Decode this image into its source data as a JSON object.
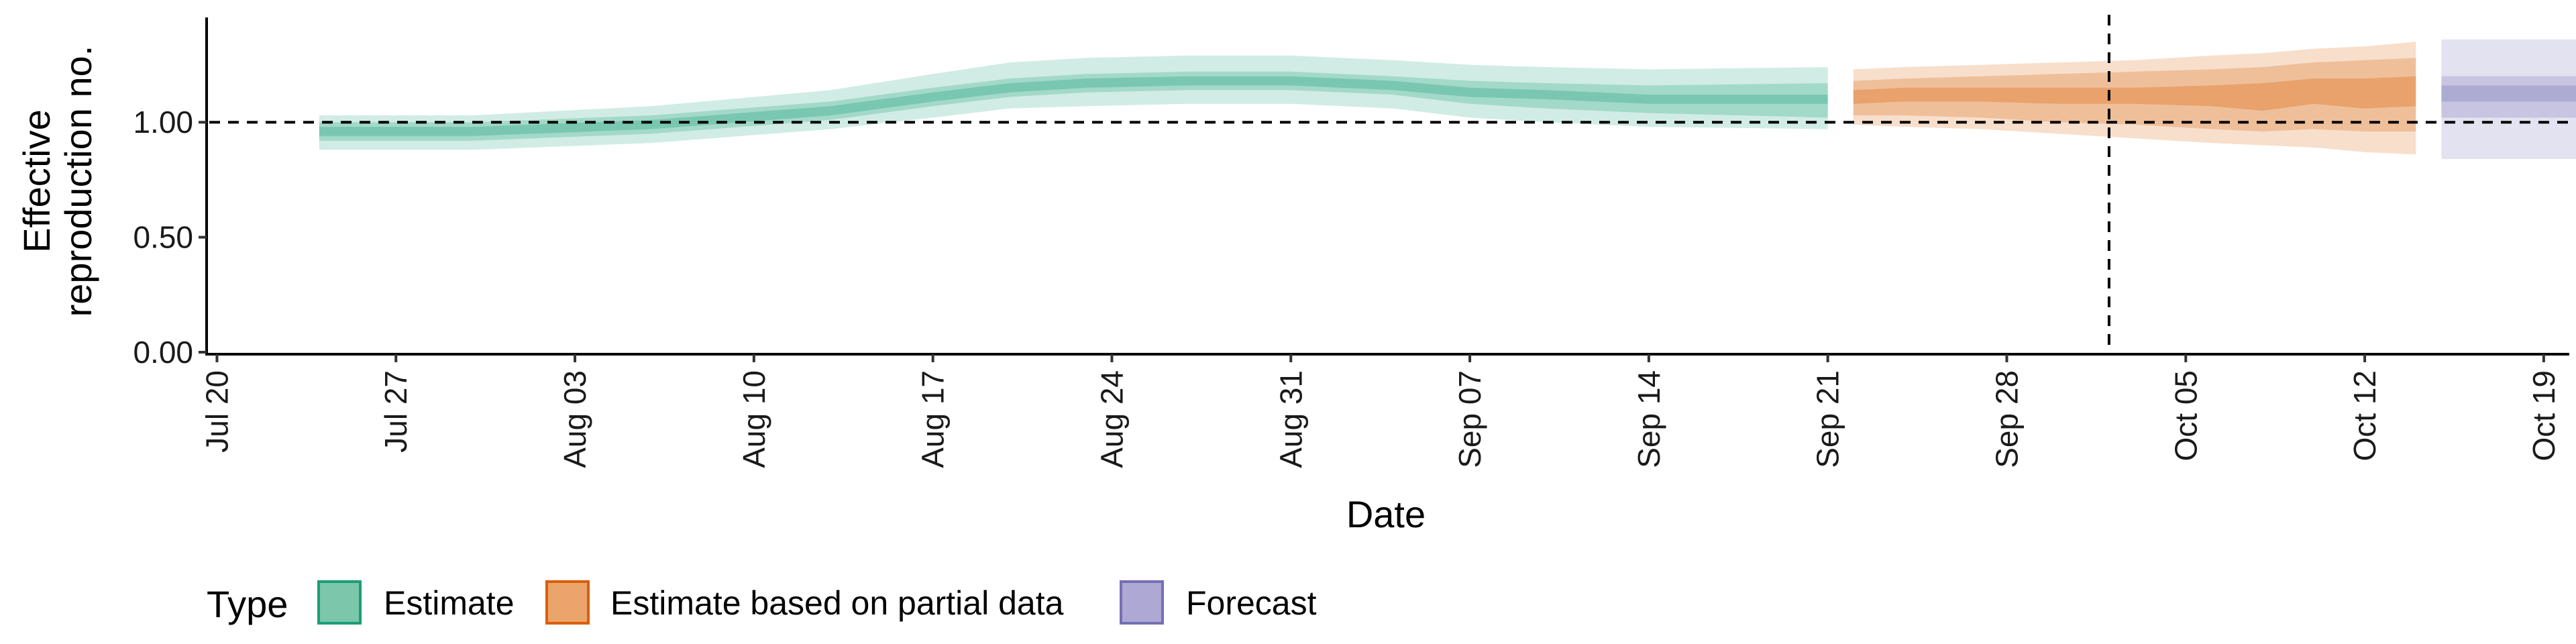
{
  "chart_data": {
    "type": "area",
    "xlabel": "Date",
    "ylabel_lines": [
      "Effective",
      "reproduction no."
    ],
    "x_ticks": [
      "Jul 20",
      "Jul 27",
      "Aug 03",
      "Aug 10",
      "Aug 17",
      "Aug 24",
      "Aug 31",
      "Sep 07",
      "Sep 14",
      "Sep 21",
      "Sep 28",
      "Oct 05",
      "Oct 12",
      "Oct 19"
    ],
    "y_ticks": [
      "0.00",
      "0.50",
      "1.00"
    ],
    "ylim": [
      0,
      1.45
    ],
    "xlim_days": [
      -0.3,
      92
    ],
    "reference_line_y": 1.0,
    "vline_date": "Oct 02",
    "legend_title": "Type",
    "legend": [
      {
        "label": "Estimate",
        "fill": "#1b9e77"
      },
      {
        "label": "Estimate based on partial data",
        "fill": "#d95f02"
      },
      {
        "label": "Forecast",
        "fill": "#7570b3"
      }
    ],
    "series": [
      {
        "name": "Estimate",
        "color": "#1b9e77",
        "x_days": [
          4,
          10,
          17,
          24,
          28,
          31,
          34,
          38,
          42,
          46,
          49,
          52,
          56,
          63
        ],
        "median": [
          0.96,
          0.96,
          0.99,
          1.05,
          1.11,
          1.15,
          1.17,
          1.18,
          1.18,
          1.16,
          1.13,
          1.12,
          1.1,
          1.1
        ],
        "inner_lo": [
          0.94,
          0.94,
          0.97,
          1.03,
          1.09,
          1.13,
          1.15,
          1.16,
          1.16,
          1.14,
          1.11,
          1.1,
          1.08,
          1.08
        ],
        "inner_hi": [
          0.98,
          0.98,
          1.01,
          1.07,
          1.13,
          1.17,
          1.19,
          1.2,
          1.2,
          1.18,
          1.15,
          1.14,
          1.12,
          1.12
        ],
        "mid_lo": [
          0.92,
          0.92,
          0.95,
          1.01,
          1.07,
          1.11,
          1.13,
          1.14,
          1.14,
          1.12,
          1.08,
          1.06,
          1.04,
          1.02
        ],
        "mid_hi": [
          1.0,
          1.0,
          1.03,
          1.09,
          1.15,
          1.19,
          1.21,
          1.22,
          1.22,
          1.2,
          1.18,
          1.17,
          1.16,
          1.17
        ],
        "outer_lo": [
          0.88,
          0.88,
          0.91,
          0.97,
          1.02,
          1.06,
          1.07,
          1.08,
          1.08,
          1.06,
          1.02,
          1.0,
          0.98,
          0.97
        ],
        "outer_hi": [
          1.03,
          1.03,
          1.07,
          1.14,
          1.21,
          1.26,
          1.28,
          1.29,
          1.29,
          1.27,
          1.25,
          1.24,
          1.23,
          1.24
        ]
      },
      {
        "name": "Estimate based on partial data",
        "color": "#d95f02",
        "x_days": [
          64,
          66,
          69,
          72,
          75,
          78,
          80,
          82,
          84,
          86
        ],
        "median": [
          1.11,
          1.12,
          1.12,
          1.11,
          1.11,
          1.11,
          1.1,
          1.13,
          1.12,
          1.13
        ],
        "inner_lo": [
          1.08,
          1.09,
          1.09,
          1.08,
          1.08,
          1.07,
          1.05,
          1.08,
          1.06,
          1.07
        ],
        "inner_hi": [
          1.14,
          1.15,
          1.15,
          1.15,
          1.15,
          1.16,
          1.17,
          1.19,
          1.19,
          1.2
        ],
        "mid_lo": [
          1.03,
          1.03,
          1.02,
          1.0,
          0.99,
          0.97,
          0.96,
          0.97,
          0.96,
          0.96
        ],
        "mid_hi": [
          1.18,
          1.19,
          1.2,
          1.21,
          1.22,
          1.23,
          1.24,
          1.26,
          1.27,
          1.28
        ],
        "outer_lo": [
          0.99,
          0.98,
          0.97,
          0.95,
          0.93,
          0.91,
          0.9,
          0.89,
          0.87,
          0.86
        ],
        "outer_hi": [
          1.23,
          1.24,
          1.25,
          1.26,
          1.27,
          1.29,
          1.3,
          1.32,
          1.33,
          1.35
        ]
      },
      {
        "name": "Forecast",
        "color": "#7570b3",
        "x_days": [
          87,
          101
        ],
        "median": [
          1.13,
          1.13
        ],
        "inner_lo": [
          1.09,
          1.09
        ],
        "inner_hi": [
          1.16,
          1.16
        ],
        "mid_lo": [
          1.02,
          1.02
        ],
        "mid_hi": [
          1.2,
          1.2
        ],
        "outer_lo": [
          0.84,
          0.84
        ],
        "outer_hi": [
          1.36,
          1.36
        ]
      }
    ]
  }
}
